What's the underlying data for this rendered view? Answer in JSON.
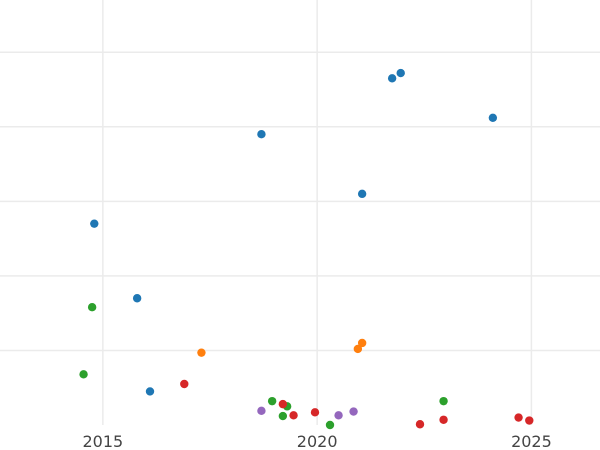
{
  "chart_data": {
    "type": "scatter",
    "title": "",
    "xlabel": "",
    "ylabel": "",
    "xlim": [
      2012.6,
      2026.6
    ],
    "ylim": [
      0,
      5.7
    ],
    "grid": true,
    "x_ticks": [
      2015,
      2020,
      2025
    ],
    "x_tick_labels": [
      "2015",
      "2020",
      "2025"
    ],
    "y_grid_values": [
      1,
      2,
      3,
      4,
      5
    ],
    "show_y_tick_labels": false,
    "legend": "none",
    "series": [
      {
        "color": "#1f77b4",
        "points": [
          {
            "x": 2014.8,
            "y": 2.7
          },
          {
            "x": 2015.8,
            "y": 1.7
          },
          {
            "x": 2016.1,
            "y": 0.45
          },
          {
            "x": 2018.7,
            "y": 3.9
          },
          {
            "x": 2021.05,
            "y": 3.1
          },
          {
            "x": 2021.75,
            "y": 4.65
          },
          {
            "x": 2021.95,
            "y": 4.72
          },
          {
            "x": 2024.1,
            "y": 4.12
          }
        ]
      },
      {
        "color": "#ff7f0e",
        "points": [
          {
            "x": 2017.3,
            "y": 0.97
          },
          {
            "x": 2020.95,
            "y": 1.02
          },
          {
            "x": 2021.05,
            "y": 1.1
          }
        ]
      },
      {
        "color": "#2ca02c",
        "points": [
          {
            "x": 2014.55,
            "y": 0.68
          },
          {
            "x": 2014.75,
            "y": 1.58
          },
          {
            "x": 2018.95,
            "y": 0.32
          },
          {
            "x": 2019.2,
            "y": 0.12
          },
          {
            "x": 2019.3,
            "y": 0.25
          },
          {
            "x": 2020.3,
            "y": 0.0
          },
          {
            "x": 2022.95,
            "y": 0.32
          }
        ]
      },
      {
        "color": "#d62728",
        "points": [
          {
            "x": 2016.9,
            "y": 0.55
          },
          {
            "x": 2019.2,
            "y": 0.28
          },
          {
            "x": 2019.45,
            "y": 0.13
          },
          {
            "x": 2019.95,
            "y": 0.17
          },
          {
            "x": 2022.4,
            "y": 0.01
          },
          {
            "x": 2022.95,
            "y": 0.07
          },
          {
            "x": 2024.7,
            "y": 0.1
          },
          {
            "x": 2024.95,
            "y": 0.06
          }
        ]
      },
      {
        "color": "#9467bd",
        "points": [
          {
            "x": 2018.7,
            "y": 0.19
          },
          {
            "x": 2020.5,
            "y": 0.13
          },
          {
            "x": 2020.85,
            "y": 0.18
          }
        ]
      }
    ]
  }
}
